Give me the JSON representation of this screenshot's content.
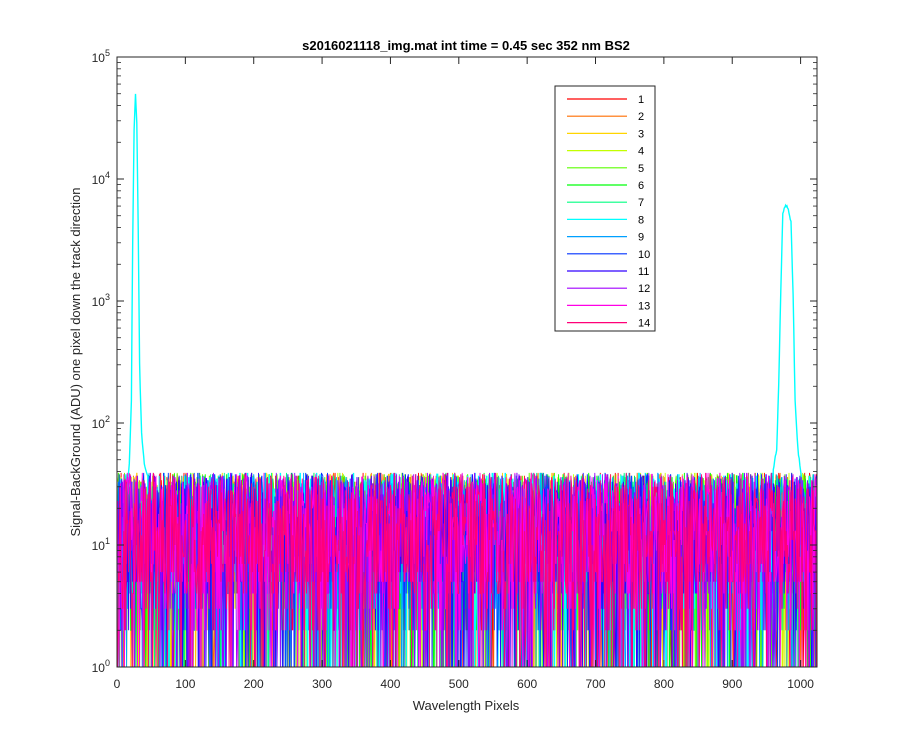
{
  "chart_data": {
    "type": "line",
    "title": "s2016021118_img.mat int time = 0.45 sec  352 nm BS2",
    "xlabel": "Wavelength Pixels",
    "ylabel": "Signal-BackGround (ADU) one pixel down the track direction",
    "xlim": [
      0,
      1024
    ],
    "ylim": [
      1,
      100000
    ],
    "yscale": "log",
    "grid": false,
    "legend_position": "top-right-inside",
    "x_ticks": [
      "0",
      "100",
      "200",
      "300",
      "400",
      "500",
      "600",
      "700",
      "800",
      "900",
      "1000"
    ],
    "y_ticks": [
      {
        "base": "10",
        "exp": "0",
        "value": 1
      },
      {
        "base": "10",
        "exp": "1",
        "value": 10
      },
      {
        "base": "10",
        "exp": "2",
        "value": 100
      },
      {
        "base": "10",
        "exp": "3",
        "value": 1000
      },
      {
        "base": "10",
        "exp": "4",
        "value": 10000
      },
      {
        "base": "10",
        "exp": "5",
        "value": 100000
      }
    ],
    "noise_band": {
      "min": 1,
      "max": 50
    },
    "series": [
      {
        "name": "1",
        "color": "#ff0000"
      },
      {
        "name": "2",
        "color": "#ff6e00"
      },
      {
        "name": "3",
        "color": "#ffd500"
      },
      {
        "name": "4",
        "color": "#c3ff00"
      },
      {
        "name": "5",
        "color": "#5cff00"
      },
      {
        "name": "6",
        "color": "#00ff0a"
      },
      {
        "name": "7",
        "color": "#00ff82"
      },
      {
        "name": "8",
        "color": "#00ffff",
        "peaks": [
          {
            "x": [
              15,
              18,
              21,
              23,
              25,
              27,
              29,
              31,
              33,
              36,
              40,
              45
            ],
            "y": [
              30,
              45,
              150,
              3000,
              25000,
              49000,
              28000,
              4000,
              300,
              80,
              45,
              35
            ]
          },
          {
            "x": [
              960,
              965,
              968,
              971,
              974,
              977,
              980,
              983,
              986,
              989,
              992,
              996,
              1000
            ],
            "y": [
              40,
              60,
              200,
              1200,
              5000,
              5800,
              6000,
              5200,
              4300,
              1100,
              150,
              60,
              40
            ]
          }
        ]
      },
      {
        "name": "9",
        "color": "#00a0ff"
      },
      {
        "name": "10",
        "color": "#0032ff"
      },
      {
        "name": "11",
        "color": "#3200ff"
      },
      {
        "name": "12",
        "color": "#a000ff"
      },
      {
        "name": "13",
        "color": "#ff00e6"
      },
      {
        "name": "14",
        "color": "#ff0078"
      }
    ]
  }
}
